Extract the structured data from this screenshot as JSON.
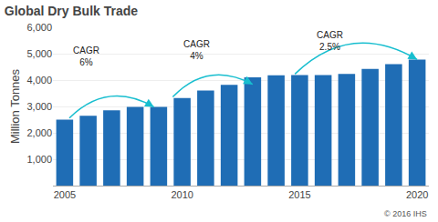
{
  "chart_data": {
    "type": "bar",
    "title": "Global Dry Bulk Trade",
    "ylabel": "Million Tonnes",
    "categories": [
      "2005",
      null,
      null,
      null,
      null,
      "2010",
      null,
      null,
      null,
      null,
      "2015",
      null,
      null,
      null,
      null,
      "2020"
    ],
    "values": [
      2500,
      2650,
      2850,
      2980,
      2980,
      3320,
      3600,
      3820,
      4100,
      4180,
      4190,
      4190,
      4230,
      4420,
      4600,
      4780
    ],
    "color": "#1f6db5",
    "ylim": [
      0,
      6000
    ],
    "yticks": [
      {
        "value": 1000,
        "label": "1,000"
      },
      {
        "value": 2000,
        "label": "2,000"
      },
      {
        "value": 3000,
        "label": "3,000"
      },
      {
        "value": 4000,
        "label": "4,000"
      },
      {
        "value": 5000,
        "label": "5,000"
      },
      {
        "value": 6000,
        "label": "6,000"
      }
    ],
    "grid": true,
    "annotations": [
      "CAGR\n6%",
      "CAGR\n4%",
      "CAGR\n2.5%",
      "© 2016 IHS"
    ]
  }
}
